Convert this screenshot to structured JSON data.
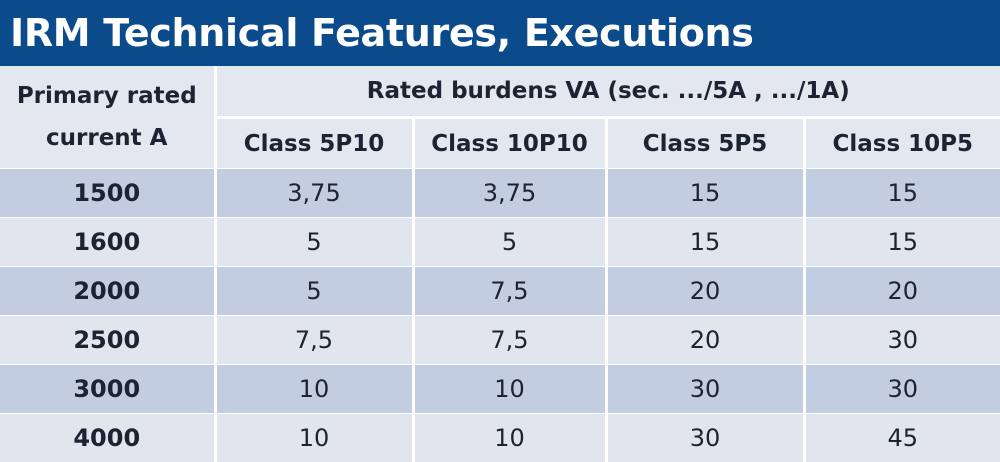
{
  "title": "IRM Technical Features, Executions",
  "table": {
    "primary_header_line1": "Primary rated",
    "primary_header_line2": "current  A",
    "group_header": "Rated burdens VA  (sec. .../5A , .../1A)",
    "columns": [
      "Class 5P10",
      "Class 10P10",
      "Class 5P5",
      "Class 10P5"
    ],
    "rows": [
      {
        "primary": "1500",
        "values": [
          "3,75",
          "3,75",
          "15",
          "15"
        ]
      },
      {
        "primary": "1600",
        "values": [
          "5",
          "5",
          "15",
          "15"
        ]
      },
      {
        "primary": "2000",
        "values": [
          "5",
          "7,5",
          "20",
          "20"
        ]
      },
      {
        "primary": "2500",
        "values": [
          "7,5",
          "7,5",
          "20",
          "30"
        ]
      },
      {
        "primary": "3000",
        "values": [
          "10",
          "10",
          "30",
          "30"
        ]
      },
      {
        "primary": "4000",
        "values": [
          "10",
          "10",
          "30",
          "45"
        ]
      }
    ]
  },
  "colors": {
    "title_bg": "#0b4b8c",
    "header_bg": "#e2e7f0",
    "row_dark": "#c2cde2",
    "row_light": "#e0e5ee"
  }
}
